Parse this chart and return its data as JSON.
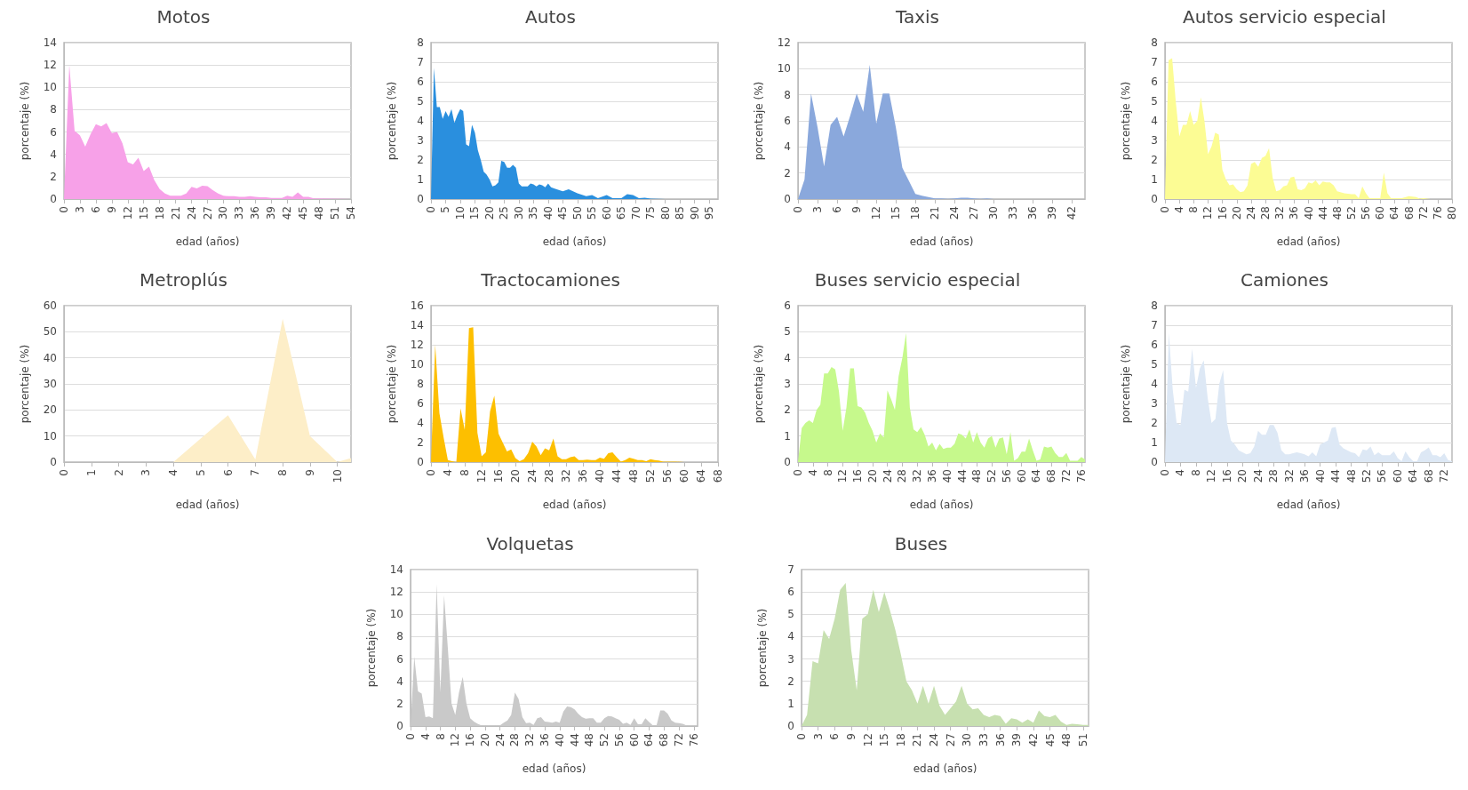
{
  "chart_data": [
    {
      "type": "area",
      "title": "Motos",
      "xlabel": "edad (años)",
      "ylabel": "porcentaje (%)",
      "color": "#f7a1e8",
      "grid": "y",
      "xlim": [
        0,
        54
      ],
      "xticks": [
        0,
        3,
        6,
        9,
        12,
        15,
        18,
        21,
        24,
        27,
        30,
        33,
        36,
        39,
        42,
        45,
        48,
        51,
        54
      ],
      "ylim": [
        0,
        14
      ],
      "yticks": [
        0,
        2,
        4,
        6,
        8,
        10,
        12,
        14
      ],
      "x": [
        0,
        1,
        2,
        3,
        4,
        5,
        6,
        7,
        8,
        9,
        10,
        11,
        12,
        13,
        14,
        15,
        16,
        17,
        18,
        19,
        20,
        21,
        22,
        23,
        24,
        25,
        26,
        27,
        28,
        29,
        30,
        31,
        32,
        33,
        34,
        35,
        36,
        37,
        38,
        39,
        40,
        41,
        42,
        43,
        44,
        45,
        46,
        47,
        48,
        54
      ],
      "values": [
        0,
        12,
        6.1,
        5.7,
        4.7,
        5.8,
        6.7,
        6.5,
        6.8,
        5.9,
        6,
        5,
        3.3,
        3.1,
        3.7,
        2.5,
        2.9,
        1.7,
        0.9,
        0.5,
        0.3,
        0.3,
        0.3,
        0.5,
        1.1,
        0.95,
        1.2,
        1.15,
        0.8,
        0.5,
        0.3,
        0.25,
        0.25,
        0.2,
        0.2,
        0.25,
        0.2,
        0.15,
        0.15,
        0.1,
        0.1,
        0.1,
        0.3,
        0.2,
        0.6,
        0.2,
        0.2,
        0.05,
        0.05,
        0
      ]
    },
    {
      "type": "area",
      "title": "Autos",
      "xlabel": "edad (años)",
      "ylabel": "porcentaje (%)",
      "color": "#2a8fde",
      "grid": "y",
      "xlim": [
        0,
        98
      ],
      "xticks": [
        0,
        5,
        10,
        15,
        20,
        25,
        30,
        35,
        40,
        45,
        50,
        55,
        60,
        65,
        70,
        75,
        80,
        85,
        90,
        95
      ],
      "ylim": [
        0,
        8
      ],
      "yticks": [
        0,
        1,
        2,
        3,
        4,
        5,
        6,
        7,
        8
      ],
      "x": [
        0,
        1,
        2,
        3,
        4,
        5,
        6,
        7,
        8,
        9,
        10,
        11,
        12,
        13,
        14,
        15,
        16,
        17,
        18,
        19,
        20,
        21,
        22,
        23,
        24,
        25,
        26,
        27,
        28,
        29,
        30,
        31,
        32,
        33,
        34,
        35,
        36,
        37,
        38,
        39,
        40,
        41,
        42,
        45,
        47,
        50,
        53,
        55,
        57,
        60,
        62,
        65,
        67,
        69,
        71,
        73,
        75,
        80,
        98
      ],
      "values": [
        0,
        6.7,
        4.7,
        4.7,
        4.1,
        4.5,
        4.2,
        4.6,
        3.9,
        4.3,
        4.6,
        4.5,
        2.8,
        2.7,
        3.8,
        3.4,
        2.5,
        2,
        1.4,
        1.25,
        1,
        0.65,
        0.7,
        0.85,
        1.95,
        1.9,
        1.6,
        1.6,
        1.75,
        1.6,
        0.8,
        0.65,
        0.65,
        0.65,
        0.8,
        0.75,
        0.65,
        0.75,
        0.7,
        0.6,
        0.8,
        0.6,
        0.55,
        0.4,
        0.5,
        0.3,
        0.15,
        0.2,
        0.05,
        0.2,
        0.05,
        0.05,
        0.25,
        0.2,
        0.05,
        0.07,
        0.02,
        0,
        0
      ]
    },
    {
      "type": "area",
      "title": "Taxis",
      "xlabel": "edad (años)",
      "ylabel": "porcentaje (%)",
      "color": "#8aa8dc",
      "grid": "y",
      "xlim": [
        0,
        44
      ],
      "xticks": [
        0,
        3,
        6,
        9,
        12,
        15,
        18,
        21,
        24,
        27,
        30,
        33,
        36,
        39,
        42
      ],
      "ylim": [
        0,
        12
      ],
      "yticks": [
        0,
        2,
        4,
        6,
        8,
        10,
        12
      ],
      "x": [
        0,
        1,
        2,
        3,
        4,
        5,
        6,
        7,
        8,
        9,
        10,
        11,
        12,
        13,
        14,
        15,
        16,
        17,
        18,
        19,
        20,
        21,
        22,
        23,
        24,
        25,
        26,
        27,
        28,
        29,
        30,
        44
      ],
      "values": [
        0,
        1.5,
        8.1,
        5.5,
        2.5,
        5.7,
        6.3,
        4.8,
        6.4,
        8.1,
        6.7,
        10.3,
        5.8,
        8.1,
        8.1,
        5.5,
        2.4,
        1.4,
        0.4,
        0.25,
        0.15,
        0.05,
        0.05,
        0.02,
        0.05,
        0.1,
        0.1,
        0.05,
        0.02,
        0.05,
        0,
        0
      ]
    },
    {
      "type": "area",
      "title": "Autos servicio especial",
      "xlabel": "edad (años)",
      "ylabel": "porcentaje (%)",
      "color": "#fcfc94",
      "grid": "y",
      "xlim": [
        0,
        80
      ],
      "xticks": [
        0,
        4,
        8,
        12,
        16,
        20,
        24,
        28,
        32,
        36,
        40,
        44,
        48,
        52,
        56,
        60,
        64,
        68,
        72,
        76,
        80
      ],
      "ylim": [
        0,
        8
      ],
      "yticks": [
        0,
        1,
        2,
        3,
        4,
        5,
        6,
        7,
        8
      ],
      "x": [
        0,
        1,
        2,
        3,
        4,
        5,
        6,
        7,
        8,
        9,
        10,
        11,
        12,
        13,
        14,
        15,
        16,
        17,
        18,
        19,
        20,
        21,
        22,
        23,
        24,
        25,
        26,
        27,
        28,
        29,
        30,
        31,
        32,
        33,
        34,
        35,
        36,
        37,
        38,
        39,
        40,
        41,
        42,
        43,
        44,
        45,
        46,
        47,
        48,
        50,
        52,
        53,
        54,
        55,
        56,
        57,
        60,
        61,
        62,
        63,
        66,
        68,
        70,
        71,
        72,
        74,
        80
      ],
      "values": [
        0,
        7.1,
        7.2,
        5,
        3.2,
        3.8,
        3.8,
        4.5,
        3.8,
        4,
        5.2,
        4,
        2.3,
        2.7,
        3.4,
        3.3,
        1.5,
        1,
        0.7,
        0.75,
        0.5,
        0.35,
        0.4,
        0.7,
        1.8,
        1.9,
        1.65,
        2.1,
        2.2,
        2.6,
        1.1,
        0.4,
        0.45,
        0.65,
        0.7,
        1.1,
        1.15,
        0.5,
        0.45,
        0.55,
        0.85,
        0.8,
        0.95,
        0.7,
        0.9,
        0.85,
        0.85,
        0.7,
        0.4,
        0.3,
        0.25,
        0.25,
        0.05,
        0.65,
        0.3,
        0.05,
        0.05,
        1.35,
        0.3,
        0.05,
        0.05,
        0.15,
        0.1,
        0.02,
        0.05,
        0,
        0
      ]
    },
    {
      "type": "area",
      "title": "Metroplús",
      "xlabel": "edad (años)",
      "ylabel": "porcentaje (%)",
      "color": "#fdeec8",
      "grid": "y",
      "xlim": [
        0,
        10.5
      ],
      "xticks": [
        0,
        1,
        2,
        3,
        4,
        5,
        6,
        7,
        8,
        9,
        10
      ],
      "ylim": [
        0,
        60
      ],
      "yticks": [
        0,
        10,
        20,
        30,
        40,
        50,
        60
      ],
      "x": [
        0,
        1,
        2,
        3,
        4,
        5,
        6,
        7,
        8,
        9,
        10,
        10.5
      ],
      "values": [
        0,
        0,
        0,
        0,
        0,
        9,
        18,
        1,
        55,
        10,
        0,
        1.5
      ]
    },
    {
      "type": "area",
      "title": "Tractocamiones",
      "xlabel": "edad (años)",
      "ylabel": "porcentaje (%)",
      "color": "#fdbf00",
      "grid": "y",
      "xlim": [
        0,
        68
      ],
      "xticks": [
        0,
        4,
        8,
        12,
        16,
        20,
        24,
        28,
        32,
        36,
        40,
        44,
        48,
        52,
        56,
        60,
        64,
        68
      ],
      "ylim": [
        0,
        16
      ],
      "yticks": [
        0,
        2,
        4,
        6,
        8,
        10,
        12,
        14,
        16
      ],
      "x": [
        0,
        1,
        2,
        3,
        4,
        5,
        6,
        7,
        8,
        9,
        10,
        11,
        12,
        13,
        14,
        15,
        16,
        17,
        18,
        19,
        20,
        21,
        22,
        23,
        24,
        25,
        26,
        27,
        28,
        29,
        30,
        31,
        32,
        33,
        34,
        35,
        36,
        37,
        38,
        39,
        40,
        41,
        42,
        43,
        44,
        45,
        46,
        47,
        48,
        49,
        50,
        51,
        52,
        53,
        54,
        55,
        58,
        60,
        68
      ],
      "values": [
        0,
        12,
        5,
        2.5,
        0.2,
        0.1,
        0,
        5.5,
        3.3,
        13.7,
        13.8,
        3,
        0.6,
        1,
        5.2,
        6.8,
        2.9,
        2,
        1.1,
        1.3,
        0.4,
        0.1,
        0.3,
        0.9,
        2.1,
        1.6,
        0.7,
        1.4,
        1.2,
        2.4,
        0.6,
        0.3,
        0.3,
        0.5,
        0.6,
        0.2,
        0.2,
        0.25,
        0.2,
        0.2,
        0.45,
        0.35,
        0.9,
        1,
        0.5,
        0.05,
        0.2,
        0.45,
        0.35,
        0.2,
        0.2,
        0.1,
        0.3,
        0.2,
        0.15,
        0.05,
        0.05,
        0,
        0
      ]
    },
    {
      "type": "area",
      "title": "Buses servicio especial",
      "xlabel": "edad (años)",
      "ylabel": "porcentaje (%)",
      "color": "#c6f98c",
      "grid": "y",
      "xlim": [
        0,
        77
      ],
      "xticks": [
        0,
        4,
        8,
        12,
        16,
        20,
        24,
        28,
        32,
        36,
        40,
        44,
        48,
        52,
        56,
        60,
        64,
        68,
        72,
        76
      ],
      "ylim": [
        0,
        6
      ],
      "yticks": [
        0,
        1,
        2,
        3,
        4,
        5,
        6
      ],
      "x": [
        0,
        1,
        2,
        3,
        4,
        5,
        6,
        7,
        8,
        9,
        10,
        11,
        12,
        13,
        14,
        15,
        16,
        17,
        18,
        19,
        20,
        21,
        22,
        23,
        24,
        25,
        26,
        27,
        28,
        29,
        30,
        31,
        32,
        33,
        34,
        35,
        36,
        37,
        38,
        39,
        40,
        41,
        42,
        43,
        44,
        45,
        46,
        47,
        48,
        49,
        50,
        51,
        52,
        53,
        54,
        55,
        56,
        57,
        58,
        59,
        60,
        61,
        62,
        63,
        64,
        65,
        66,
        67,
        68,
        69,
        70,
        71,
        72,
        73,
        74,
        75,
        76,
        77
      ],
      "values": [
        0,
        1.3,
        1.5,
        1.6,
        1.5,
        2,
        2.2,
        3.4,
        3.4,
        3.65,
        3.55,
        2.7,
        1.2,
        2.1,
        3.6,
        3.6,
        2.15,
        2.1,
        1.9,
        1.5,
        1.2,
        0.75,
        1.1,
        0.95,
        2.75,
        2.4,
        2,
        3.3,
        4,
        4.95,
        2.1,
        1.25,
        1.15,
        1.35,
        1.05,
        0.6,
        0.75,
        0.45,
        0.7,
        0.5,
        0.55,
        0.55,
        0.7,
        1.1,
        1.05,
        0.9,
        1.25,
        0.75,
        1.15,
        0.75,
        0.55,
        0.9,
        1,
        0.55,
        0.9,
        0.95,
        0.3,
        1.15,
        0.05,
        0.15,
        0.4,
        0.4,
        0.9,
        0.45,
        0.05,
        0.1,
        0.6,
        0.55,
        0.6,
        0.35,
        0.2,
        0.2,
        0.35,
        0.05,
        0.05,
        0.05,
        0.2,
        0.1
      ]
    },
    {
      "type": "area",
      "title": "Camiones",
      "xlabel": "edad (años)",
      "ylabel": "porcentaje (%)",
      "color": "#dde8f5",
      "grid": "y",
      "xlim": [
        0,
        74
      ],
      "xticks": [
        0,
        4,
        8,
        12,
        16,
        20,
        24,
        28,
        32,
        36,
        40,
        44,
        48,
        52,
        56,
        60,
        64,
        68,
        72
      ],
      "ylim": [
        0,
        8
      ],
      "yticks": [
        0,
        1,
        2,
        3,
        4,
        5,
        6,
        7,
        8
      ],
      "x": [
        0,
        1,
        2,
        3,
        4,
        5,
        6,
        7,
        8,
        9,
        10,
        11,
        12,
        13,
        14,
        15,
        16,
        17,
        18,
        19,
        20,
        21,
        22,
        23,
        24,
        25,
        26,
        27,
        28,
        29,
        30,
        31,
        32,
        33,
        34,
        35,
        36,
        37,
        38,
        39,
        40,
        41,
        42,
        43,
        44,
        45,
        46,
        47,
        48,
        49,
        50,
        51,
        52,
        53,
        54,
        55,
        56,
        57,
        58,
        59,
        60,
        61,
        62,
        63,
        64,
        65,
        66,
        67,
        68,
        69,
        70,
        71,
        72,
        73,
        74
      ],
      "values": [
        0,
        6.6,
        3.7,
        2,
        1.9,
        3.7,
        3.6,
        5.8,
        3.8,
        4.8,
        5.2,
        3.3,
        2,
        2.2,
        4,
        4.7,
        2,
        1.1,
        0.9,
        0.6,
        0.5,
        0.4,
        0.45,
        0.8,
        1.6,
        1.4,
        1.4,
        1.9,
        1.9,
        1.5,
        0.6,
        0.4,
        0.4,
        0.45,
        0.5,
        0.45,
        0.4,
        0.3,
        0.5,
        0.3,
        0.9,
        1,
        1.1,
        1.75,
        1.8,
        0.9,
        0.7,
        0.6,
        0.5,
        0.45,
        0.25,
        0.65,
        0.6,
        0.8,
        0.35,
        0.5,
        0.35,
        0.35,
        0.35,
        0.55,
        0.2,
        0.05,
        0.55,
        0.25,
        0.05,
        0.05,
        0.5,
        0.6,
        0.75,
        0.35,
        0.35,
        0.25,
        0.45,
        0.1,
        0.05
      ]
    },
    {
      "type": "area",
      "title": "Volquetas",
      "xlabel": "edad (años)",
      "ylabel": "porcentaje (%)",
      "color": "#c9c9c9",
      "grid": "y",
      "xlim": [
        0,
        77
      ],
      "xticks": [
        0,
        4,
        8,
        12,
        16,
        20,
        24,
        28,
        32,
        36,
        40,
        44,
        48,
        52,
        56,
        60,
        64,
        68,
        72,
        76
      ],
      "ylim": [
        0,
        14
      ],
      "yticks": [
        0,
        2,
        4,
        6,
        8,
        10,
        12,
        14
      ],
      "x": [
        0,
        1,
        2,
        3,
        4,
        5,
        6,
        7,
        8,
        9,
        10,
        11,
        12,
        13,
        14,
        15,
        16,
        17,
        18,
        19,
        20,
        24,
        25,
        26,
        27,
        28,
        29,
        30,
        31,
        32,
        33,
        34,
        35,
        36,
        37,
        38,
        39,
        40,
        41,
        42,
        43,
        44,
        45,
        46,
        47,
        48,
        49,
        50,
        51,
        52,
        53,
        54,
        55,
        56,
        57,
        58,
        59,
        60,
        61,
        62,
        63,
        64,
        65,
        66,
        67,
        68,
        69,
        70,
        71,
        72,
        73,
        74,
        75,
        77
      ],
      "values": [
        0,
        6.2,
        3.1,
        2.9,
        0.8,
        0.85,
        0.7,
        12.7,
        3,
        11.7,
        7,
        2,
        1,
        3,
        4.4,
        2,
        0.7,
        0.4,
        0.2,
        0.05,
        0.02,
        0.05,
        0.3,
        0.5,
        1,
        3,
        2.4,
        0.8,
        0.25,
        0.3,
        0.1,
        0.7,
        0.8,
        0.4,
        0.35,
        0.3,
        0.4,
        0.3,
        1.3,
        1.75,
        1.7,
        1.5,
        1.1,
        0.8,
        0.65,
        0.7,
        0.7,
        0.3,
        0.3,
        0.7,
        0.9,
        0.85,
        0.7,
        0.55,
        0.2,
        0.3,
        0.1,
        0.7,
        0.15,
        0.15,
        0.7,
        0.35,
        0.05,
        0.05,
        1.4,
        1.4,
        1.1,
        0.5,
        0.3,
        0.25,
        0.2,
        0.05,
        0.02,
        0
      ]
    },
    {
      "type": "area",
      "title": "Buses",
      "xlabel": "edad (años)",
      "ylabel": "porcentaje (%)",
      "color": "#c7e0b0",
      "grid": "y",
      "xlim": [
        0,
        52
      ],
      "xticks": [
        0,
        3,
        6,
        9,
        12,
        15,
        18,
        21,
        24,
        27,
        30,
        33,
        36,
        39,
        42,
        45,
        48,
        51
      ],
      "ylim": [
        0,
        7
      ],
      "yticks": [
        0,
        1,
        2,
        3,
        4,
        5,
        6,
        7
      ],
      "x": [
        0,
        1,
        2,
        3,
        4,
        5,
        6,
        7,
        8,
        9,
        10,
        11,
        12,
        13,
        14,
        15,
        16,
        17,
        18,
        19,
        20,
        21,
        22,
        23,
        24,
        25,
        26,
        27,
        28,
        29,
        30,
        31,
        32,
        33,
        34,
        35,
        36,
        37,
        38,
        39,
        40,
        41,
        42,
        43,
        44,
        45,
        46,
        47,
        48,
        49,
        50,
        51,
        52
      ],
      "values": [
        0,
        0.5,
        2.9,
        2.8,
        4.3,
        3.9,
        4.8,
        6.1,
        6.4,
        3.4,
        1.6,
        4.8,
        5,
        6.1,
        5.1,
        6,
        5.2,
        4.3,
        3.2,
        2,
        1.6,
        1,
        1.8,
        1,
        1.8,
        0.9,
        0.5,
        0.8,
        1.1,
        1.8,
        1,
        0.75,
        0.8,
        0.5,
        0.4,
        0.5,
        0.45,
        0.1,
        0.35,
        0.3,
        0.15,
        0.3,
        0.15,
        0.7,
        0.45,
        0.4,
        0.5,
        0.2,
        0.05,
        0.1,
        0.08,
        0.05,
        0.05
      ]
    }
  ]
}
